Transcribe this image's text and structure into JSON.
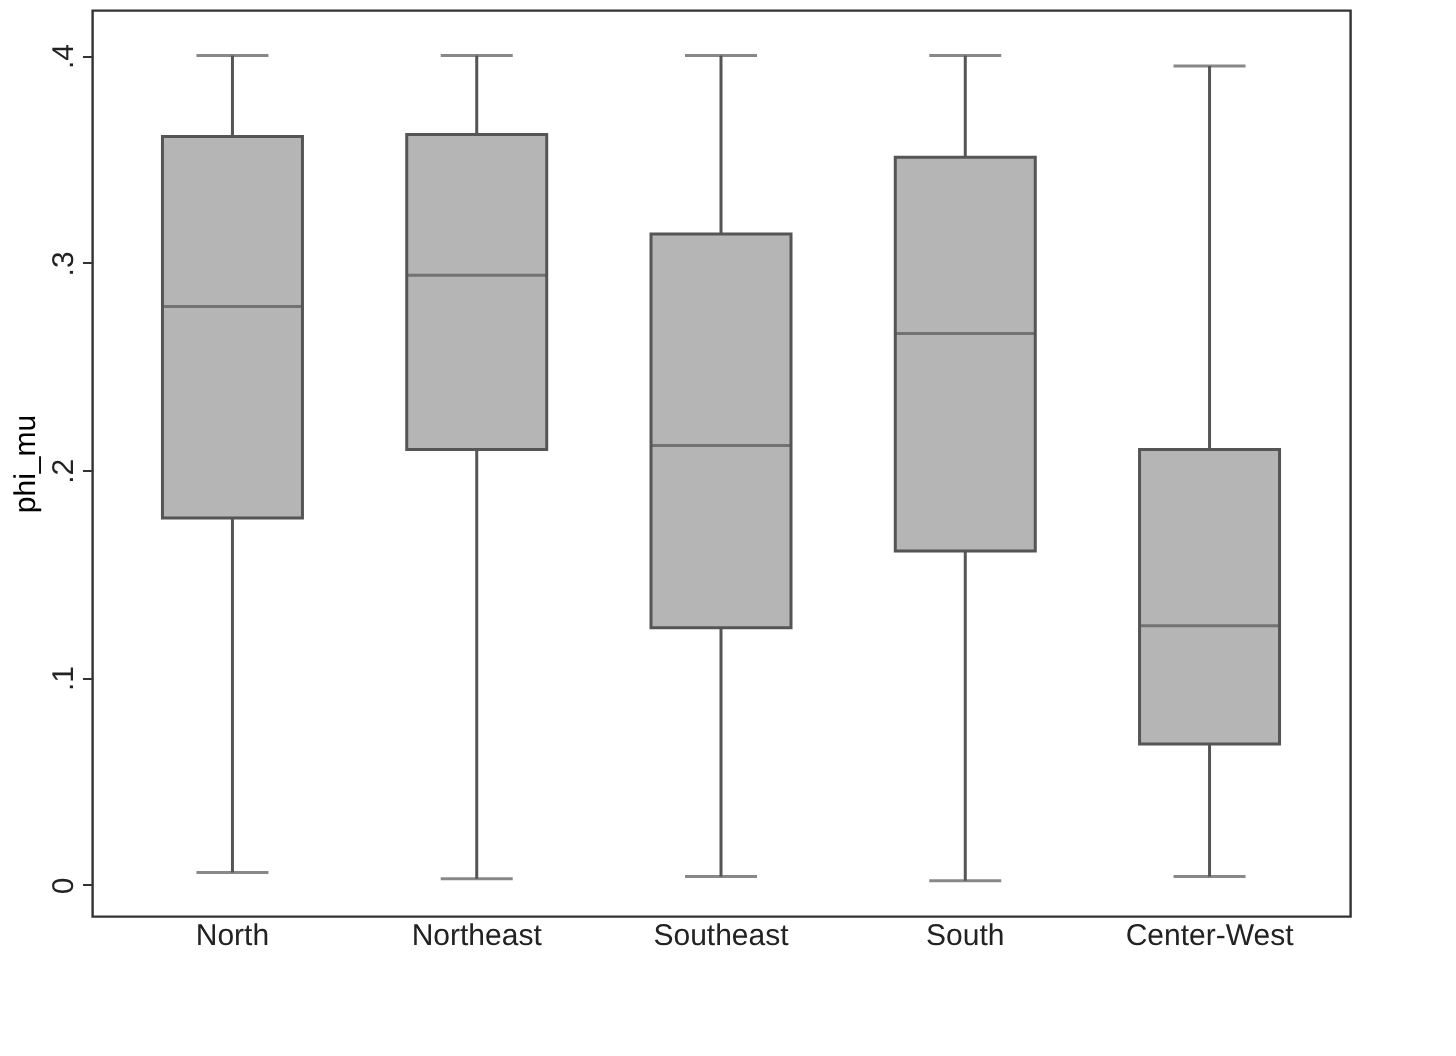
{
  "chart_data": {
    "type": "box",
    "ylabel": "phi_mu",
    "categories": [
      "North",
      "Northeast",
      "Southeast",
      "South",
      "Center-West"
    ],
    "boxes": [
      {
        "low": 0.006,
        "q1": 0.177,
        "median": 0.279,
        "q3": 0.361,
        "high": 0.4
      },
      {
        "low": 0.003,
        "q1": 0.21,
        "median": 0.294,
        "q3": 0.362,
        "high": 0.4
      },
      {
        "low": 0.004,
        "q1": 0.124,
        "median": 0.212,
        "q3": 0.314,
        "high": 0.4
      },
      {
        "low": 0.002,
        "q1": 0.161,
        "median": 0.266,
        "q3": 0.351,
        "high": 0.4
      },
      {
        "low": 0.004,
        "q1": 0.068,
        "median": 0.125,
        "q3": 0.21,
        "high": 0.395
      }
    ],
    "color": "#b5b5b5",
    "ylim": [
      -0.015,
      0.422
    ],
    "yticks": [
      0,
      {
        "value": 0.1,
        "label": ".1"
      },
      {
        "value": 0.2,
        "label": ".2"
      },
      {
        "value": 0.3,
        "label": ".3"
      },
      {
        "value": 0.4,
        "label": ".4"
      }
    ],
    "grid": false
  }
}
